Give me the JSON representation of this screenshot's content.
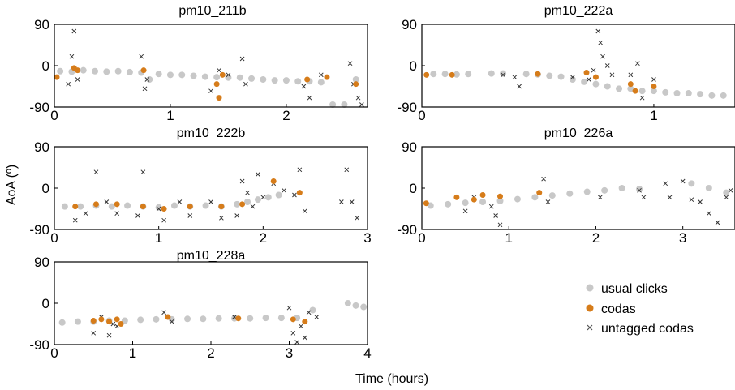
{
  "figure": {
    "ylabel": "AoA (º)",
    "xlabel": "Time (hours)"
  },
  "legend": {
    "items": [
      {
        "label": "usual clicks",
        "marker": "dot",
        "color": "#c8c8c8"
      },
      {
        "label": "codas",
        "marker": "dot",
        "color": "#d67c1a"
      },
      {
        "label": "untagged codas",
        "marker": "cross",
        "color": "#555555"
      }
    ]
  },
  "colors": {
    "usual": "#c8c8c8",
    "coda": "#d67c1a",
    "untagged": "#333333"
  },
  "chart_data": [
    {
      "type": "scatter",
      "title": "pm10_211b",
      "xlim": [
        0,
        2.7
      ],
      "ylim": [
        -90,
        90
      ],
      "xticks": [
        0,
        1,
        2
      ],
      "yticks": [
        90,
        0,
        -90
      ],
      "usual_clicks": [
        [
          0.05,
          -12
        ],
        [
          0.15,
          -13
        ],
        [
          0.25,
          -10
        ],
        [
          0.35,
          -12
        ],
        [
          0.45,
          -13
        ],
        [
          0.55,
          -12
        ],
        [
          0.65,
          -14
        ],
        [
          0.75,
          -15
        ],
        [
          0.82,
          -30
        ],
        [
          0.9,
          -18
        ],
        [
          1.0,
          -20
        ],
        [
          1.1,
          -20
        ],
        [
          1.2,
          -22
        ],
        [
          1.3,
          -24
        ],
        [
          1.4,
          -25
        ],
        [
          1.5,
          -26
        ],
        [
          1.6,
          -26
        ],
        [
          1.7,
          -28
        ],
        [
          1.8,
          -30
        ],
        [
          1.9,
          -32
        ],
        [
          2.0,
          -32
        ],
        [
          2.1,
          -34
        ],
        [
          2.2,
          -34
        ],
        [
          2.3,
          -36
        ],
        [
          2.4,
          -88
        ],
        [
          2.5,
          -88
        ],
        [
          2.6,
          -30
        ]
      ],
      "codas": [
        [
          0.0,
          -25
        ],
        [
          0.17,
          -5
        ],
        [
          0.2,
          -10
        ],
        [
          0.77,
          -10
        ],
        [
          1.4,
          -40
        ],
        [
          1.42,
          -70
        ],
        [
          1.45,
          -20
        ],
        [
          2.18,
          -30
        ],
        [
          2.35,
          -25
        ],
        [
          2.6,
          -40
        ]
      ],
      "untagged_codas": [
        [
          0.12,
          -40
        ],
        [
          0.15,
          20
        ],
        [
          0.17,
          75
        ],
        [
          0.2,
          -30
        ],
        [
          0.75,
          20
        ],
        [
          0.78,
          -50
        ],
        [
          0.8,
          -30
        ],
        [
          1.35,
          -55
        ],
        [
          1.42,
          -10
        ],
        [
          1.5,
          -20
        ],
        [
          1.62,
          15
        ],
        [
          1.65,
          -40
        ],
        [
          2.15,
          -45
        ],
        [
          2.2,
          -70
        ],
        [
          2.3,
          -20
        ],
        [
          2.55,
          5
        ],
        [
          2.58,
          -40
        ],
        [
          2.62,
          -70
        ],
        [
          2.65,
          -85
        ]
      ]
    },
    {
      "type": "scatter",
      "title": "pm10_222a",
      "xlim": [
        0,
        1.35
      ],
      "ylim": [
        -90,
        90
      ],
      "xticks": [
        0,
        1
      ],
      "yticks": [
        90,
        0,
        -90
      ],
      "usual_clicks": [
        [
          0.05,
          -18
        ],
        [
          0.1,
          -18
        ],
        [
          0.15,
          -19
        ],
        [
          0.2,
          -18
        ],
        [
          0.3,
          -17
        ],
        [
          0.35,
          -17
        ],
        [
          0.45,
          -18
        ],
        [
          0.5,
          -19
        ],
        [
          0.55,
          -22
        ],
        [
          0.6,
          -24
        ],
        [
          0.65,
          -30
        ],
        [
          0.7,
          -35
        ],
        [
          0.75,
          -40
        ],
        [
          0.8,
          -45
        ],
        [
          0.85,
          -50
        ],
        [
          0.9,
          -50
        ],
        [
          0.95,
          -55
        ],
        [
          1.0,
          -55
        ],
        [
          1.05,
          -58
        ],
        [
          1.1,
          -60
        ],
        [
          1.15,
          -60
        ],
        [
          1.2,
          -62
        ],
        [
          1.25,
          -65
        ],
        [
          1.3,
          -65
        ]
      ],
      "codas": [
        [
          0.02,
          -20
        ],
        [
          0.13,
          -20
        ],
        [
          0.5,
          -18
        ],
        [
          0.71,
          -15
        ],
        [
          0.75,
          -25
        ],
        [
          0.9,
          -40
        ],
        [
          0.92,
          -55
        ],
        [
          1.0,
          -45
        ]
      ],
      "untagged_codas": [
        [
          0.35,
          -20
        ],
        [
          0.4,
          -25
        ],
        [
          0.42,
          -45
        ],
        [
          0.65,
          -25
        ],
        [
          0.72,
          -30
        ],
        [
          0.74,
          -10
        ],
        [
          0.76,
          75
        ],
        [
          0.77,
          50
        ],
        [
          0.78,
          20
        ],
        [
          0.8,
          0
        ],
        [
          0.82,
          -20
        ],
        [
          0.9,
          -20
        ],
        [
          0.93,
          5
        ],
        [
          0.95,
          -70
        ],
        [
          1.0,
          -30
        ]
      ]
    },
    {
      "type": "scatter",
      "title": "pm10_222b",
      "xlim": [
        0,
        3
      ],
      "ylim": [
        -90,
        90
      ],
      "xticks": [
        0,
        1,
        2,
        3
      ],
      "yticks": [
        90,
        0,
        -90
      ],
      "usual_clicks": [
        [
          0.1,
          -40
        ],
        [
          0.25,
          -40
        ],
        [
          0.4,
          -38
        ],
        [
          0.55,
          -40
        ],
        [
          0.7,
          -38
        ],
        [
          0.85,
          -40
        ],
        [
          1.0,
          -42
        ],
        [
          1.15,
          -38
        ],
        [
          1.3,
          -40
        ],
        [
          1.45,
          -38
        ],
        [
          1.6,
          -40
        ],
        [
          1.75,
          -35
        ],
        [
          1.85,
          -30
        ],
        [
          1.95,
          -25
        ],
        [
          2.05,
          -20
        ],
        [
          2.15,
          -15
        ]
      ],
      "codas": [
        [
          0.2,
          -40
        ],
        [
          0.4,
          -35
        ],
        [
          0.6,
          -35
        ],
        [
          0.85,
          -40
        ],
        [
          1.05,
          -45
        ],
        [
          1.3,
          -40
        ],
        [
          1.6,
          -40
        ],
        [
          1.8,
          -35
        ],
        [
          2.1,
          15
        ],
        [
          2.35,
          -10
        ]
      ],
      "untagged_codas": [
        [
          0.2,
          -70
        ],
        [
          0.3,
          -55
        ],
        [
          0.4,
          35
        ],
        [
          0.5,
          -30
        ],
        [
          0.6,
          -55
        ],
        [
          0.8,
          -60
        ],
        [
          0.85,
          35
        ],
        [
          1.0,
          -45
        ],
        [
          1.05,
          -70
        ],
        [
          1.2,
          -30
        ],
        [
          1.3,
          -60
        ],
        [
          1.5,
          -30
        ],
        [
          1.6,
          -65
        ],
        [
          1.75,
          -60
        ],
        [
          1.8,
          15
        ],
        [
          1.85,
          -10
        ],
        [
          1.9,
          -40
        ],
        [
          1.95,
          30
        ],
        [
          2.0,
          -20
        ],
        [
          2.1,
          10
        ],
        [
          2.2,
          -5
        ],
        [
          2.3,
          -15
        ],
        [
          2.35,
          40
        ],
        [
          2.4,
          -50
        ],
        [
          2.75,
          -30
        ],
        [
          2.8,
          40
        ],
        [
          2.85,
          -30
        ],
        [
          2.9,
          -65
        ]
      ]
    },
    {
      "type": "scatter",
      "title": "pm10_226a",
      "xlim": [
        0,
        3.6
      ],
      "ylim": [
        -90,
        90
      ],
      "xticks": [
        0,
        1,
        2,
        3
      ],
      "yticks": [
        90,
        0,
        -90
      ],
      "usual_clicks": [
        [
          0.1,
          -38
        ],
        [
          0.3,
          -35
        ],
        [
          0.5,
          -32
        ],
        [
          0.7,
          -30
        ],
        [
          0.9,
          -28
        ],
        [
          1.1,
          -24
        ],
        [
          1.3,
          -20
        ],
        [
          1.5,
          -16
        ],
        [
          1.7,
          -12
        ],
        [
          1.9,
          -8
        ],
        [
          2.1,
          -5
        ],
        [
          2.3,
          0
        ],
        [
          2.5,
          -2
        ],
        [
          3.1,
          10
        ],
        [
          3.3,
          0
        ],
        [
          3.5,
          -10
        ]
      ],
      "codas": [
        [
          0.05,
          -33
        ],
        [
          0.4,
          -20
        ],
        [
          0.6,
          -25
        ],
        [
          0.7,
          -15
        ],
        [
          0.9,
          -18
        ],
        [
          1.35,
          -10
        ]
      ],
      "untagged_codas": [
        [
          0.5,
          -50
        ],
        [
          0.6,
          -20
        ],
        [
          0.8,
          -40
        ],
        [
          0.85,
          -60
        ],
        [
          0.9,
          -80
        ],
        [
          1.4,
          20
        ],
        [
          1.45,
          -30
        ],
        [
          2.05,
          -20
        ],
        [
          2.5,
          -5
        ],
        [
          2.55,
          -20
        ],
        [
          2.8,
          10
        ],
        [
          2.85,
          -20
        ],
        [
          3.0,
          15
        ],
        [
          3.1,
          -25
        ],
        [
          3.2,
          -30
        ],
        [
          3.3,
          -55
        ],
        [
          3.4,
          -75
        ],
        [
          3.5,
          -20
        ],
        [
          3.55,
          -5
        ]
      ]
    },
    {
      "type": "scatter",
      "title": "pm10_228a",
      "xlim": [
        0,
        4
      ],
      "ylim": [
        -90,
        90
      ],
      "xticks": [
        0,
        1,
        2,
        3,
        4
      ],
      "yticks": [
        90,
        0,
        -90
      ],
      "usual_clicks": [
        [
          0.1,
          -42
        ],
        [
          0.3,
          -40
        ],
        [
          0.5,
          -40
        ],
        [
          0.7,
          -38
        ],
        [
          0.9,
          -38
        ],
        [
          1.1,
          -36
        ],
        [
          1.3,
          -35
        ],
        [
          1.5,
          -35
        ],
        [
          1.7,
          -34
        ],
        [
          1.9,
          -34
        ],
        [
          2.1,
          -33
        ],
        [
          2.3,
          -33
        ],
        [
          2.5,
          -33
        ],
        [
          2.7,
          -32
        ],
        [
          2.9,
          -32
        ],
        [
          3.1,
          -32
        ],
        [
          3.3,
          -15
        ],
        [
          3.75,
          0
        ],
        [
          3.85,
          -5
        ],
        [
          3.95,
          -8
        ]
      ],
      "codas": [
        [
          0.5,
          -38
        ],
        [
          0.6,
          -35
        ],
        [
          0.7,
          -40
        ],
        [
          0.8,
          -35
        ],
        [
          0.85,
          -45
        ],
        [
          1.45,
          -30
        ],
        [
          2.35,
          -33
        ],
        [
          3.05,
          -35
        ],
        [
          3.2,
          -40
        ]
      ],
      "untagged_codas": [
        [
          0.5,
          -65
        ],
        [
          0.6,
          -30
        ],
        [
          0.7,
          -70
        ],
        [
          0.75,
          -45
        ],
        [
          0.8,
          -50
        ],
        [
          1.4,
          -20
        ],
        [
          1.5,
          -40
        ],
        [
          2.3,
          -30
        ],
        [
          3.0,
          -10
        ],
        [
          3.05,
          -65
        ],
        [
          3.1,
          -85
        ],
        [
          3.15,
          -50
        ],
        [
          3.2,
          -75
        ],
        [
          3.25,
          -20
        ],
        [
          3.35,
          -30
        ]
      ]
    }
  ]
}
